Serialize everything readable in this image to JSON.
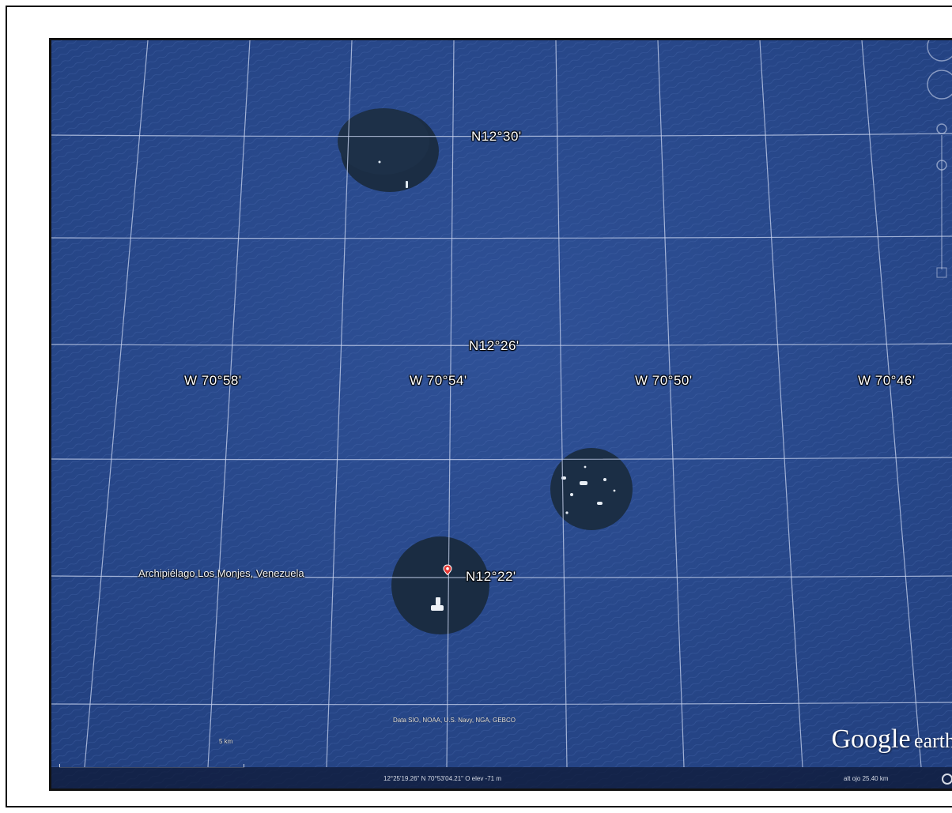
{
  "grid": {
    "latitude_labels": [
      "N12°30'",
      "N12°26'",
      "N12°22'"
    ],
    "longitude_labels": [
      "W 70°58'",
      "W 70°54'",
      "W 70°50'",
      "W 70°46'"
    ]
  },
  "placemark": {
    "label": "Archipiélago Los Monjes, Venezuela",
    "icon": "map-pin-icon",
    "color": "#e53935"
  },
  "attribution": "Data SIO, NOAA, U.S. Navy, NGA, GEBCO",
  "scale": {
    "label": "5 km"
  },
  "logo": {
    "brand": "Google",
    "product": "earth"
  },
  "status_bar": {
    "coords": "12°25'19.26\" N  70°53'04.21\" O  elev  -71 m",
    "eye_alt": "alt ojo  25.40 km"
  },
  "colors": {
    "ocean": "#2b4a8e",
    "island_shadow": "#1b2d44",
    "pin": "#e53935"
  }
}
